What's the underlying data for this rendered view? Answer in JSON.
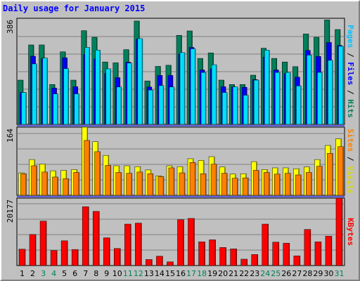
{
  "title": "Daily usage for January 2015",
  "colors": {
    "hits": "#00805c",
    "files": "#0000ff",
    "pages": "#00e0ff",
    "visits": "#ffff00",
    "sites": "#ff8000",
    "kbytes": "#ff0000",
    "weekend_label": "#00805c",
    "weekday_label": "#000000",
    "separator": "#0000ff",
    "panel_bg": "#c0c0c0"
  },
  "side_labels": {
    "top": [
      {
        "text": "Pages",
        "color": "#00c0ff"
      },
      {
        "text": " / ",
        "color": "#000000"
      },
      {
        "text": "Files",
        "color": "#0000ff"
      },
      {
        "text": " / ",
        "color": "#000000"
      },
      {
        "text": "Hits",
        "color": "#00805c"
      }
    ],
    "middle": [
      {
        "text": "Sites",
        "color": "#ff8000"
      },
      {
        "text": " / ",
        "color": "#000000"
      },
      {
        "text": "Visits",
        "color": "#d8d800"
      }
    ],
    "bottom": [
      {
        "text": "KBytes",
        "color": "#ff0000"
      }
    ]
  },
  "chart_data": [
    {
      "type": "bar",
      "panel": "top",
      "ymax_label": "386",
      "ylim": [
        0,
        386
      ],
      "categories": [
        "1",
        "2",
        "3",
        "4",
        "5",
        "6",
        "7",
        "8",
        "9",
        "10",
        "11",
        "12",
        "13",
        "14",
        "15",
        "16",
        "17",
        "18",
        "19",
        "20",
        "21",
        "22",
        "23",
        "24",
        "25",
        "26",
        "27",
        "28",
        "29",
        "30",
        "31"
      ],
      "weekend": [
        false,
        false,
        true,
        true,
        false,
        false,
        false,
        false,
        false,
        false,
        true,
        true,
        false,
        false,
        false,
        false,
        true,
        true,
        false,
        false,
        false,
        false,
        false,
        true,
        true,
        false,
        false,
        false,
        false,
        false,
        true
      ],
      "series": [
        {
          "name": "Hits",
          "values": [
            161,
            289,
            289,
            145,
            264,
            161,
            341,
            317,
            227,
            224,
            272,
            376,
            158,
            211,
            215,
            324,
            340,
            240,
            260,
            161,
            145,
            145,
            179,
            277,
            240,
            227,
            210,
            329,
            317,
            380,
            345
          ]
        },
        {
          "name": "Files",
          "values": [
            116,
            248,
            240,
            132,
            242,
            137,
            255,
            238,
            185,
            170,
            226,
            310,
            136,
            178,
            178,
            256,
            280,
            198,
            202,
            137,
            136,
            135,
            163,
            245,
            198,
            185,
            172,
            269,
            247,
            298,
            287
          ]
        },
        {
          "name": "Pages",
          "values": [
            116,
            220,
            241,
            111,
            203,
            111,
            280,
            270,
            202,
            136,
            223,
            312,
            125,
            141,
            136,
            261,
            275,
            189,
            217,
            116,
            136,
            106,
            161,
            270,
            189,
            189,
            140,
            252,
            189,
            233,
            284
          ]
        }
      ]
    },
    {
      "type": "bar",
      "panel": "middle",
      "ymax_label": "164",
      "ylim": [
        0,
        164
      ],
      "categories": [
        "1",
        "2",
        "3",
        "4",
        "5",
        "6",
        "7",
        "8",
        "9",
        "10",
        "11",
        "12",
        "13",
        "14",
        "15",
        "16",
        "17",
        "18",
        "19",
        "20",
        "21",
        "22",
        "23",
        "24",
        "25",
        "26",
        "27",
        "28",
        "29",
        "30",
        "31"
      ],
      "series": [
        {
          "name": "Visits",
          "values": [
            54,
            86,
            75,
            59,
            60,
            62,
            164,
            129,
            96,
            71,
            71,
            69,
            61,
            47,
            71,
            69,
            88,
            84,
            93,
            68,
            51,
            52,
            81,
            62,
            66,
            66,
            64,
            68,
            86,
            120,
            136
          ]
        },
        {
          "name": "Sites",
          "values": [
            52,
            71,
            56,
            44,
            40,
            55,
            132,
            105,
            72,
            55,
            53,
            56,
            52,
            45,
            66,
            54,
            79,
            52,
            75,
            53,
            41,
            42,
            60,
            55,
            51,
            53,
            49,
            55,
            70,
            101,
            117
          ]
        }
      ]
    },
    {
      "type": "bar",
      "panel": "bottom",
      "ymax_label": "20177",
      "ylim": [
        0,
        20177
      ],
      "categories": [
        "1",
        "2",
        "3",
        "4",
        "5",
        "6",
        "7",
        "8",
        "9",
        "10",
        "11",
        "12",
        "13",
        "14",
        "15",
        "16",
        "17",
        "18",
        "19",
        "20",
        "21",
        "22",
        "23",
        "24",
        "25",
        "26",
        "27",
        "28",
        "29",
        "30",
        "31"
      ],
      "series": [
        {
          "name": "KBytes",
          "values": [
            4900,
            9300,
            13300,
            4500,
            7400,
            4800,
            17600,
            16200,
            8300,
            5100,
            12400,
            12700,
            1800,
            2800,
            1100,
            13700,
            14100,
            7100,
            7700,
            5400,
            5000,
            1900,
            3300,
            12400,
            7000,
            6700,
            2900,
            10800,
            7100,
            8800,
            20177
          ]
        }
      ]
    }
  ]
}
